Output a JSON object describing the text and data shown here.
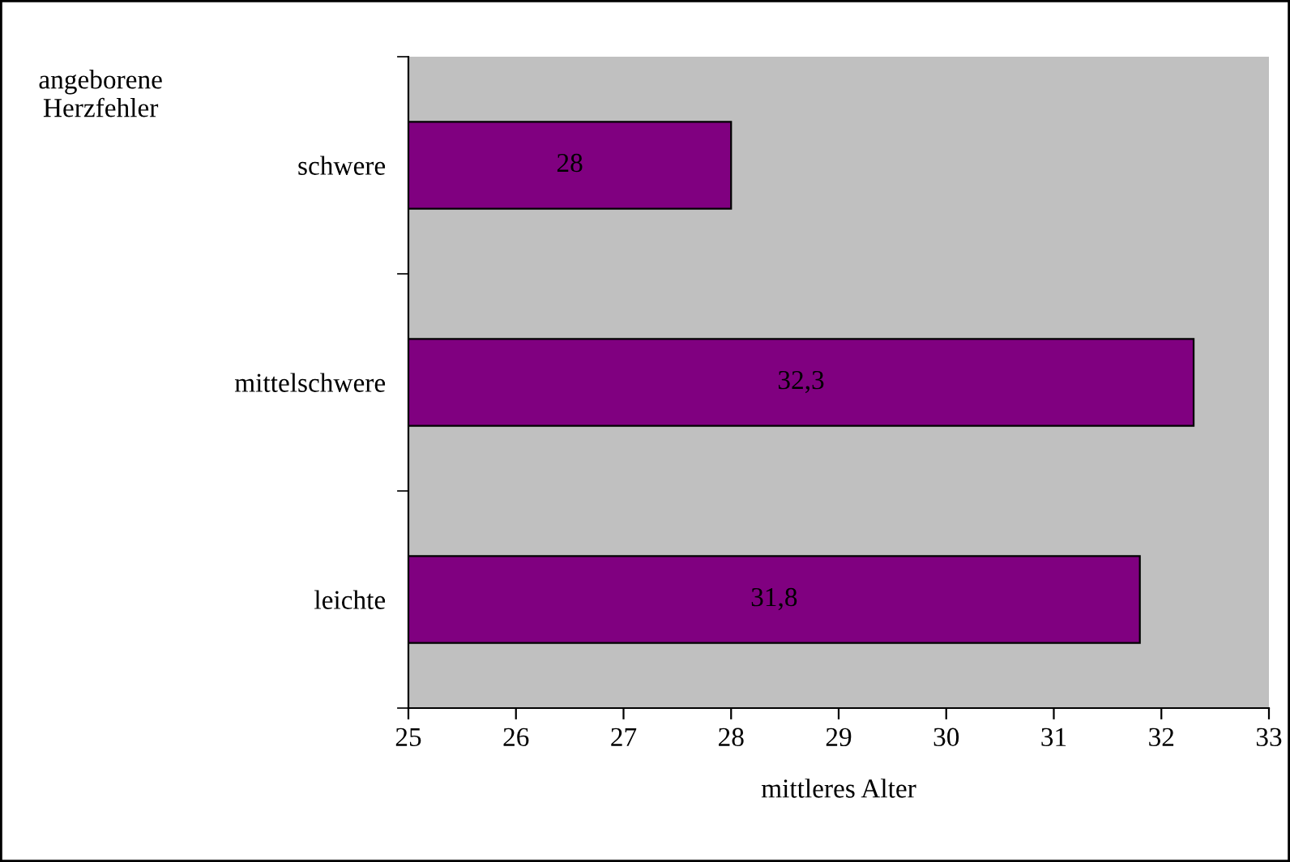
{
  "chart_data": {
    "type": "bar",
    "orientation": "horizontal",
    "ylabel": "angeborene\nHerzfehler",
    "xlabel": "mittleres Alter",
    "categories": [
      "schwere",
      "mittelschwere",
      "leichte"
    ],
    "values": [
      28,
      32.3,
      31.8
    ],
    "color": "#800080",
    "value_labels": [
      "28",
      "32,3",
      "31,8"
    ],
    "xlim": [
      25,
      33
    ],
    "xticks": [
      25,
      26,
      27,
      28,
      29,
      30,
      31,
      32,
      33
    ],
    "grid": false,
    "legend": false
  }
}
